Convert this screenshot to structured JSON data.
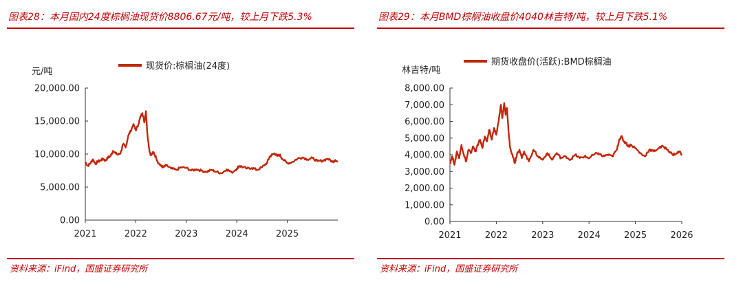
{
  "source_label": "资料来源：iFind，国盛证券研究所",
  "colors": {
    "accent": "#c00000",
    "line": "#c0280a"
  },
  "chart_data": [
    {
      "id": "fig28",
      "type": "line",
      "figure_title": "图表28：本月国内24度棕榈油现货价8806.67元/吨，较上月下跌5.3%",
      "unit_label": "元/吨",
      "legend": "现货价:棕榈油(24度)",
      "ylim": [
        0,
        20000
      ],
      "yticks": [
        0,
        5000,
        10000,
        15000,
        20000
      ],
      "ytick_labels": [
        "0.00",
        "5,000.00",
        "10,000.00",
        "15,000.00",
        "20,000.00"
      ],
      "xlim": [
        2021.0,
        2026.0
      ],
      "xticks": [
        2021,
        2022,
        2023,
        2024,
        2025
      ],
      "xtick_labels": [
        "2021",
        "2022",
        "2023",
        "2024",
        "2025"
      ],
      "series": [
        {
          "name": "现货价:棕榈油(24度)",
          "x": [
            2021.0,
            2021.05,
            2021.1,
            2021.15,
            2021.2,
            2021.25,
            2021.3,
            2021.35,
            2021.4,
            2021.45,
            2021.5,
            2021.55,
            2021.6,
            2021.65,
            2021.7,
            2021.75,
            2021.8,
            2021.85,
            2021.9,
            2021.95,
            2022.0,
            2022.05,
            2022.1,
            2022.13,
            2022.17,
            2022.2,
            2022.23,
            2022.27,
            2022.3,
            2022.35,
            2022.4,
            2022.45,
            2022.5,
            2022.55,
            2022.6,
            2022.7,
            2022.8,
            2022.9,
            2023.0,
            2023.1,
            2023.2,
            2023.3,
            2023.4,
            2023.5,
            2023.6,
            2023.7,
            2023.8,
            2023.9,
            2024.0,
            2024.05,
            2024.1,
            2024.2,
            2024.3,
            2024.4,
            2024.5,
            2024.6,
            2024.65,
            2024.7,
            2024.75,
            2024.8,
            2024.85,
            2024.9,
            2025.0,
            2025.1,
            2025.2,
            2025.3,
            2025.4,
            2025.5,
            2025.6,
            2025.7,
            2025.8,
            2025.9,
            2025.95,
            2026.0
          ],
          "values": [
            8800,
            8200,
            8600,
            9200,
            8500,
            8900,
            9000,
            9300,
            9000,
            9500,
            9700,
            10500,
            10100,
            9900,
            10200,
            11500,
            11000,
            12800,
            13500,
            14500,
            13600,
            14500,
            15800,
            16200,
            14800,
            16500,
            13000,
            10500,
            9800,
            10300,
            9500,
            8600,
            8200,
            8000,
            8300,
            7800,
            7600,
            8000,
            7900,
            7500,
            7700,
            7500,
            7300,
            7600,
            7300,
            7100,
            7700,
            7200,
            7800,
            8200,
            8100,
            7800,
            7900,
            7600,
            8000,
            8700,
            9600,
            9900,
            10100,
            9700,
            9900,
            9300,
            8600,
            8800,
            9300,
            9500,
            9200,
            9400,
            8900,
            9000,
            9300,
            8800,
            9100,
            8800
          ]
        }
      ]
    },
    {
      "id": "fig29",
      "type": "line",
      "figure_title": "图表29：本月BMD棕榈油收盘价4040林吉特/吨，较上月下跌5.1%",
      "unit_label": "林吉特/吨",
      "legend": "期货收盘价(活跃):BMD棕榈油",
      "ylim": [
        0,
        8000
      ],
      "yticks": [
        0,
        1000,
        2000,
        3000,
        4000,
        5000,
        6000,
        7000,
        8000
      ],
      "ytick_labels": [
        "0.00",
        "1,000.00",
        "2,000.00",
        "3,000.00",
        "4,000.00",
        "5,000.00",
        "6,000.00",
        "7,000.00",
        "8,000.00"
      ],
      "xlim": [
        2021.0,
        2026.0
      ],
      "xticks": [
        2021,
        2022,
        2023,
        2024,
        2025,
        2026
      ],
      "xtick_labels": [
        "2021",
        "2022",
        "2023",
        "2024",
        "2025",
        "2026"
      ],
      "series": [
        {
          "name": "期货收盘价(活跃):BMD棕榈油",
          "x": [
            2021.0,
            2021.05,
            2021.1,
            2021.15,
            2021.2,
            2021.25,
            2021.3,
            2021.35,
            2021.4,
            2021.45,
            2021.5,
            2021.55,
            2021.6,
            2021.65,
            2021.7,
            2021.75,
            2021.8,
            2021.85,
            2021.9,
            2021.95,
            2022.0,
            2022.05,
            2022.1,
            2022.13,
            2022.17,
            2022.2,
            2022.23,
            2022.27,
            2022.3,
            2022.35,
            2022.4,
            2022.45,
            2022.5,
            2022.55,
            2022.6,
            2022.7,
            2022.8,
            2022.9,
            2023.0,
            2023.1,
            2023.2,
            2023.3,
            2023.4,
            2023.5,
            2023.6,
            2023.7,
            2023.8,
            2023.9,
            2024.0,
            2024.1,
            2024.2,
            2024.3,
            2024.4,
            2024.5,
            2024.6,
            2024.65,
            2024.7,
            2024.75,
            2024.8,
            2024.85,
            2024.9,
            2025.0,
            2025.1,
            2025.2,
            2025.3,
            2025.4,
            2025.5,
            2025.6,
            2025.7,
            2025.8,
            2025.9,
            2025.95,
            2026.0
          ],
          "values": [
            3500,
            3900,
            3400,
            4200,
            3800,
            4600,
            4000,
            3600,
            4300,
            4100,
            4500,
            4200,
            4600,
            4900,
            4400,
            5100,
            4800,
            5500,
            4900,
            5600,
            5200,
            6000,
            7000,
            6200,
            7100,
            6400,
            6800,
            5200,
            4400,
            4000,
            3500,
            4100,
            4300,
            3800,
            4200,
            3600,
            4300,
            3900,
            3700,
            4100,
            3700,
            4100,
            3800,
            3900,
            3700,
            4000,
            3800,
            3900,
            3800,
            4000,
            4100,
            3900,
            4000,
            3900,
            4300,
            4900,
            5100,
            4800,
            4700,
            4500,
            4600,
            4400,
            4100,
            3900,
            4300,
            4200,
            4400,
            4500,
            4300,
            4000,
            4100,
            4200,
            4040
          ]
        }
      ]
    }
  ]
}
